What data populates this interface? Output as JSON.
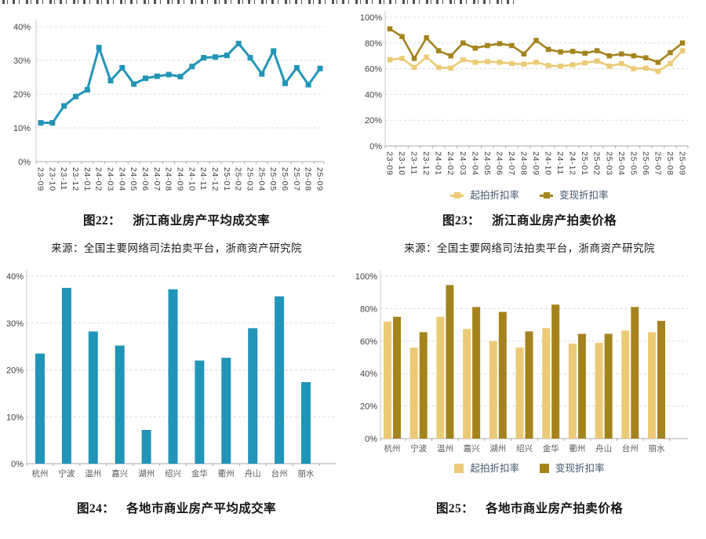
{
  "source_note": "来源：全国主要网络司法拍卖平台，浙商资产研究院",
  "colors": {
    "teal": "#2195b8",
    "gold_light": "#ecca75",
    "gold_dark": "#a5831c",
    "grid": "#dcdcdc",
    "axis": "#c9c9c9",
    "axis_bottom": "#a9a9a9",
    "tick_text": "#3f3f3f",
    "category_text": "#595959",
    "legend_text": "#44546a"
  },
  "figures": {
    "fig22": {
      "caption_label": "图22：",
      "caption_title": "浙江商业房产平均成交率"
    },
    "fig23": {
      "caption_label": "图23：",
      "caption_title": "浙江商业房产拍卖价格",
      "legend": [
        "起拍折扣率",
        "变现折扣率"
      ]
    },
    "fig24": {
      "caption_label": "图24：",
      "caption_title": "各地市商业房产平均成交率"
    },
    "fig25": {
      "caption_label": "图25：",
      "caption_title": "各地市商业房产拍卖价格",
      "legend": [
        "起拍折扣率",
        "变现折扣率"
      ]
    }
  },
  "chart_data": [
    {
      "id": "fig22",
      "type": "line",
      "title": "浙江商业房产平均成交率",
      "ylim": [
        0,
        40
      ],
      "ytick_step": 10,
      "y_unit": "%",
      "grid": true,
      "legend_position": null,
      "x_labels": [
        "23-09",
        "23-10",
        "23-11",
        "23-12",
        "24-01",
        "24-02",
        "24-03",
        "24-04",
        "24-05",
        "24-06",
        "24-07",
        "24-08",
        "24-09",
        "24-10",
        "24-11",
        "24-12",
        "25-01",
        "25-02",
        "25-03",
        "25-04",
        "25-05",
        "25-06",
        "25-07",
        "25-08",
        "25-09"
      ],
      "series": [
        {
          "color": "teal",
          "values": [
            11.5,
            11.5,
            16.5,
            19.3,
            21.3,
            33.8,
            24.0,
            27.8,
            23.0,
            24.7,
            25.3,
            25.8,
            25.2,
            28.2,
            30.8,
            31.0,
            31.5,
            35.0,
            30.8,
            26.0,
            32.8,
            23.2,
            27.8,
            22.8,
            27.6
          ]
        }
      ]
    },
    {
      "id": "fig23",
      "type": "line",
      "title": "浙江商业房产拍卖价格",
      "ylim": [
        0,
        100
      ],
      "ytick_step": 20,
      "y_unit": "%",
      "grid": true,
      "legend_position": "bottom",
      "x_labels": [
        "23-09",
        "23-10",
        "23-11",
        "23-12",
        "24-01",
        "24-02",
        "24-03",
        "24-04",
        "24-05",
        "24-06",
        "24-07",
        "24-08",
        "24-09",
        "24-10",
        "24-11",
        "24-12",
        "25-01",
        "25-02",
        "25-03",
        "25-04",
        "25-05",
        "25-06",
        "25-07",
        "25-08",
        "25-09"
      ],
      "series": [
        {
          "name": "起拍折扣率",
          "color": "gold_light",
          "values": [
            67,
            68,
            61,
            69,
            61,
            60.5,
            67,
            65,
            65.5,
            65,
            64,
            63.5,
            65,
            62.5,
            62,
            63,
            64.5,
            66,
            62,
            64,
            60,
            60.5,
            58,
            64,
            74
          ]
        },
        {
          "name": "变现折扣率",
          "color": "gold_dark",
          "values": [
            91,
            85,
            68,
            84,
            74,
            70,
            80,
            76,
            78,
            79.5,
            78,
            71.5,
            82,
            75,
            73,
            73.5,
            72,
            74,
            70,
            71.5,
            70,
            68.5,
            65,
            72.5,
            80
          ]
        }
      ]
    },
    {
      "id": "fig24",
      "type": "bar",
      "title": "各地市商业房产平均成交率",
      "ylim": [
        0,
        40
      ],
      "ytick_step": 10,
      "y_unit": "%",
      "grid": true,
      "legend_position": null,
      "categories": [
        "杭州",
        "宁波",
        "温州",
        "嘉兴",
        "湖州",
        "绍兴",
        "金华",
        "衢州",
        "舟山",
        "台州",
        "丽水"
      ],
      "series": [
        {
          "color": "teal",
          "values": [
            23.5,
            37.5,
            28.2,
            25.2,
            7.2,
            37.2,
            22.0,
            22.6,
            28.9,
            35.7,
            17.4
          ]
        }
      ]
    },
    {
      "id": "fig25",
      "type": "bar",
      "title": "各地市商业房产拍卖价格",
      "ylim": [
        0,
        100
      ],
      "ytick_step": 20,
      "y_unit": "%",
      "grid": true,
      "legend_position": "bottom",
      "categories": [
        "杭州",
        "宁波",
        "温州",
        "嘉兴",
        "湖州",
        "绍兴",
        "金华",
        "衢州",
        "舟山",
        "台州",
        "丽水"
      ],
      "series": [
        {
          "name": "起拍折扣率",
          "color": "gold_light",
          "values": [
            72,
            56,
            75,
            67.5,
            60,
            56,
            68,
            58.5,
            59,
            66.5,
            65.5
          ]
        },
        {
          "name": "变现折扣率",
          "color": "gold_dark",
          "values": [
            75,
            65.5,
            94.5,
            81,
            78,
            66,
            82.5,
            64.5,
            64.5,
            81,
            72.5
          ]
        }
      ]
    }
  ]
}
